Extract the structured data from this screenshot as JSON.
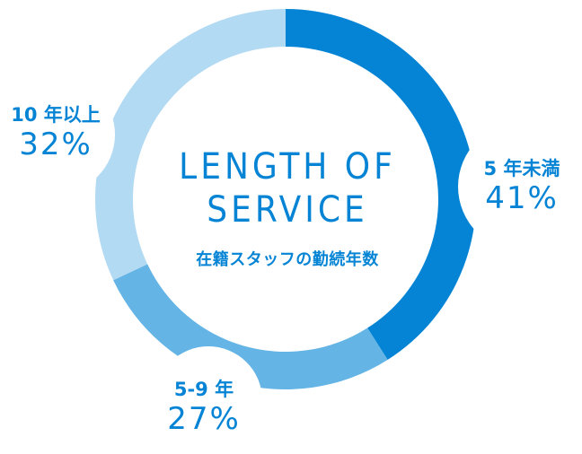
{
  "chart_data": {
    "type": "pie",
    "title": "LENGTH OF SERVICE",
    "subtitle": "在籍スタッフの勤続年数",
    "title_lines": [
      "LENGTH OF",
      "SERVICE"
    ],
    "categories": [
      "5 年未満",
      "5-9 年",
      "10 年以上"
    ],
    "values": [
      41,
      27,
      32
    ],
    "value_labels": [
      "41%",
      "27%",
      "32%"
    ],
    "colors": [
      "#0584d5",
      "#64b4e6",
      "#b3daf3"
    ],
    "text_color": "#0584d5"
  }
}
